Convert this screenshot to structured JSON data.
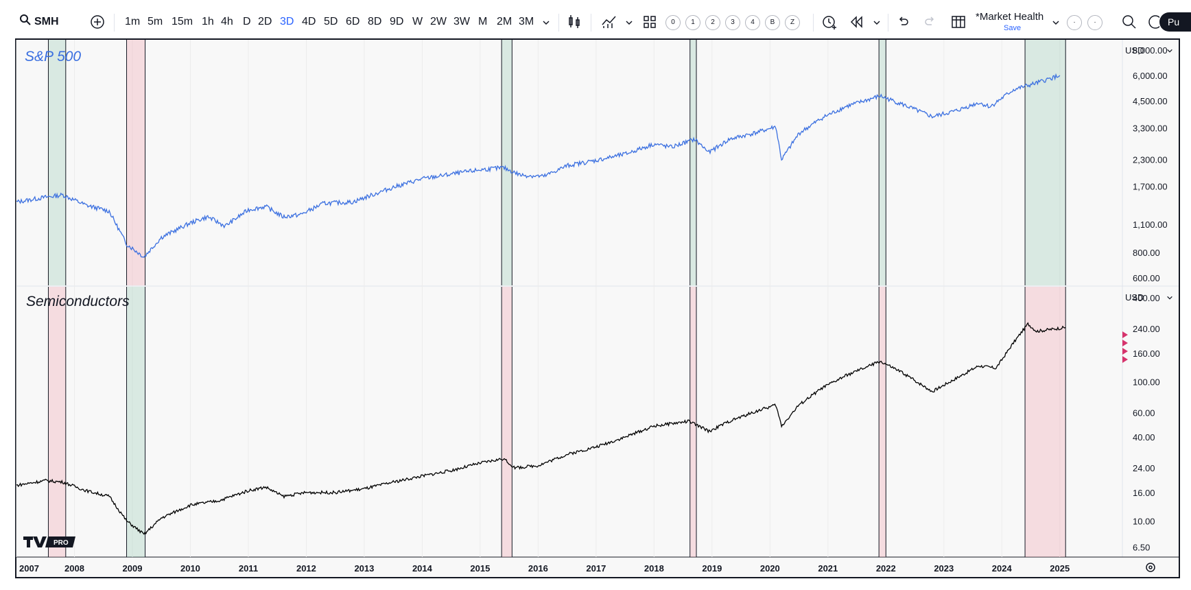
{
  "toolbar": {
    "symbol": "SMH",
    "intervals": [
      "1m",
      "5m",
      "15m",
      "1h",
      "4h",
      "D",
      "2D",
      "3D",
      "4D",
      "5D",
      "6D",
      "8D",
      "9D",
      "W",
      "2W",
      "3W",
      "M",
      "2M",
      "3M"
    ],
    "selected_interval": "3D",
    "circle_buttons": [
      "0",
      "1",
      "2",
      "3",
      "4",
      "B",
      "Z"
    ],
    "layout_name": "*Market Health",
    "layout_save": "Save",
    "publish": "Pu",
    "icons": [
      "search-icon",
      "add-symbol-icon",
      "chevron-down-icon",
      "candles-icon",
      "indicators-icon",
      "layouts-icon",
      "alert-icon",
      "replay-icon",
      "undo-icon",
      "redo-icon",
      "table-icon",
      "zoom-icon",
      "settings-icon"
    ]
  },
  "panes": {
    "top": {
      "title": "S&P 500",
      "currency": "USD",
      "color": "#3a6fe0",
      "ticks": [
        "8,000.00",
        "6,000.00",
        "4,500.00",
        "3,300.00",
        "2,300.00",
        "1,700.00",
        "1,100.00",
        "800.00",
        "600.00"
      ],
      "tick_values": [
        8000,
        6000,
        4500,
        3300,
        2300,
        1700,
        1100,
        800,
        600
      ]
    },
    "bottom": {
      "title": "Semiconductors",
      "currency": "USD",
      "color": "#000000",
      "ticks": [
        "400.00",
        "240.00",
        "160.00",
        "100.00",
        "60.00",
        "40.00",
        "24.00",
        "16.00",
        "10.00",
        "6.50"
      ],
      "tick_values": [
        400,
        240,
        160,
        100,
        60,
        40,
        24,
        16,
        10,
        6.5
      ]
    }
  },
  "x_axis": {
    "years": [
      "2007",
      "2008",
      "2009",
      "2010",
      "2011",
      "2012",
      "2013",
      "2014",
      "2015",
      "2016",
      "2017",
      "2018",
      "2019",
      "2020",
      "2021",
      "2022",
      "2023",
      "2024",
      "2025"
    ]
  },
  "chart_data": [
    {
      "type": "line",
      "title": "S&P 500",
      "scale": "log",
      "x": [
        2007.0,
        2007.5,
        2007.8,
        2008.2,
        2008.6,
        2008.9,
        2009.2,
        2009.5,
        2010.0,
        2010.3,
        2010.6,
        2011.0,
        2011.3,
        2011.6,
        2011.9,
        2012.3,
        2012.8,
        2013.5,
        2014.0,
        2014.5,
        2015.0,
        2015.4,
        2015.7,
        2016.1,
        2016.5,
        2017.0,
        2017.5,
        2018.0,
        2018.3,
        2018.7,
        2018.95,
        2019.3,
        2019.8,
        2020.1,
        2020.2,
        2020.5,
        2020.9,
        2021.3,
        2021.9,
        2022.3,
        2022.8,
        2023.2,
        2023.6,
        2023.8,
        2024.2,
        2024.6,
        2025.0
      ],
      "y": [
        1420,
        1500,
        1540,
        1370,
        1280,
        880,
        760,
        950,
        1120,
        1200,
        1080,
        1300,
        1350,
        1200,
        1230,
        1400,
        1420,
        1680,
        1850,
        1950,
        2050,
        2100,
        1930,
        1900,
        2150,
        2280,
        2450,
        2750,
        2650,
        2900,
        2500,
        2900,
        3150,
        3350,
        2300,
        3100,
        3700,
        4200,
        4750,
        4300,
        3750,
        4000,
        4400,
        4200,
        5100,
        5500,
        6000
      ],
      "ylim": [
        550,
        9000
      ],
      "shaded_periods": [
        [
          2007.55,
          2007.85
        ],
        [
          2008.9,
          2009.22
        ],
        [
          2015.37,
          2015.55
        ],
        [
          2018.62,
          2018.73
        ],
        [
          2021.88,
          2022.0
        ],
        [
          2024.4,
          2025.1
        ]
      ],
      "shade_colors": [
        "green",
        "pink",
        "green",
        "green",
        "green",
        "green"
      ]
    },
    {
      "type": "line",
      "title": "Semiconductors",
      "scale": "log",
      "x": [
        2007.0,
        2007.5,
        2007.8,
        2008.2,
        2008.6,
        2008.9,
        2009.2,
        2009.5,
        2010.0,
        2010.5,
        2011.0,
        2011.3,
        2011.6,
        2012.0,
        2012.5,
        2013.0,
        2013.5,
        2014.0,
        2014.5,
        2015.0,
        2015.4,
        2015.6,
        2016.0,
        2016.5,
        2017.0,
        2017.5,
        2018.0,
        2018.6,
        2018.95,
        2019.3,
        2019.8,
        2020.1,
        2020.2,
        2020.5,
        2020.9,
        2021.3,
        2021.9,
        2022.3,
        2022.8,
        2023.2,
        2023.6,
        2023.9,
        2024.2,
        2024.45,
        2024.6,
        2025.1
      ],
      "y": [
        18,
        19.5,
        19,
        16.5,
        15,
        10,
        8,
        10.5,
        13,
        14,
        16.5,
        17.5,
        15,
        16,
        16,
        17,
        19,
        21,
        23,
        26,
        28,
        24,
        25,
        30,
        34,
        40,
        48,
        52,
        44,
        52,
        62,
        68,
        48,
        68,
        90,
        110,
        140,
        115,
        85,
        105,
        130,
        125,
        190,
        260,
        230,
        245
      ],
      "ylim": [
        5.5,
        480
      ],
      "shaded_periods": [
        [
          2007.55,
          2007.85
        ],
        [
          2008.9,
          2009.22
        ],
        [
          2015.37,
          2015.55
        ],
        [
          2018.62,
          2018.73
        ],
        [
          2021.88,
          2022.0
        ],
        [
          2024.4,
          2025.1
        ]
      ],
      "shade_colors": [
        "pink",
        "green",
        "pink",
        "pink",
        "pink",
        "pink"
      ]
    }
  ]
}
